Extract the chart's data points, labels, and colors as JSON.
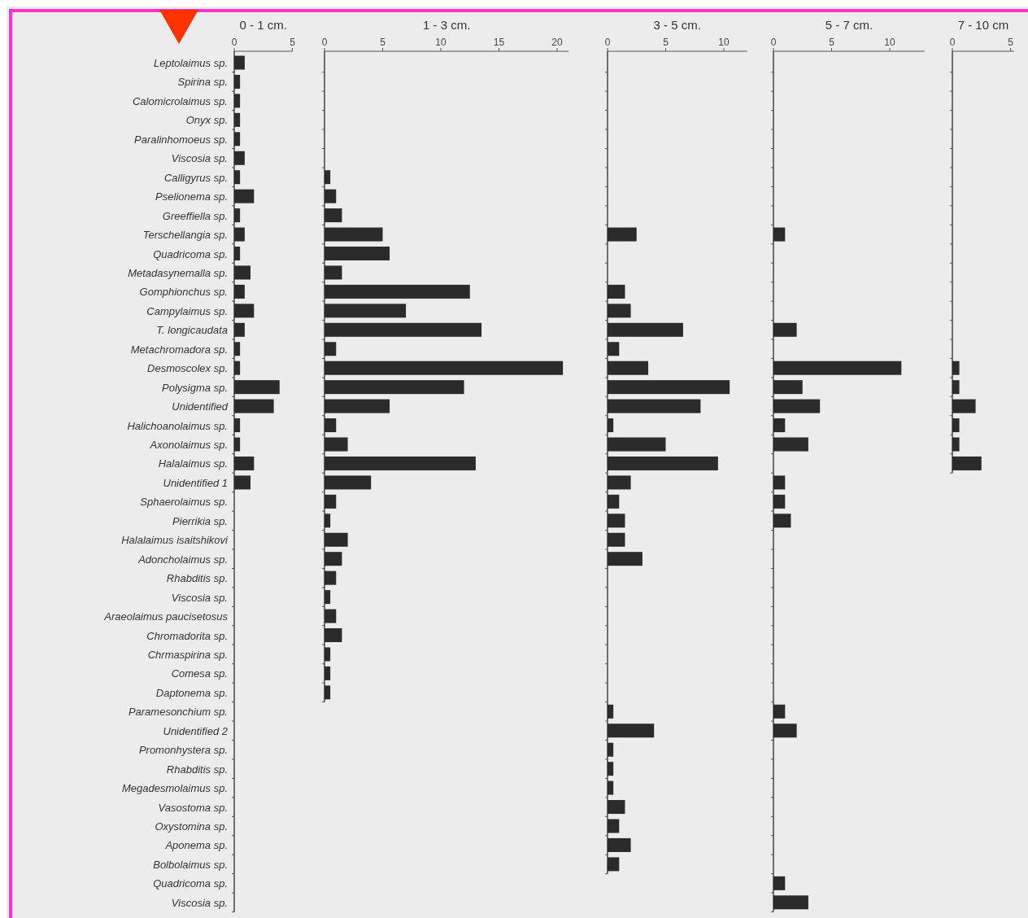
{
  "chart_data": [
    {
      "type": "bar",
      "orientation": "horizontal",
      "title": "0 - 1 cm.",
      "color": "#2b2b2b",
      "xlim": [
        0,
        5
      ],
      "xticks": [
        0,
        5
      ],
      "categories": [
        "Leptolaimus sp.",
        "Spirina sp.",
        "Calomicrolaimus sp.",
        "Onyx sp.",
        "Paralinhomoeus sp.",
        "Viscosia sp.",
        "Calligyrus sp.",
        "Pselionema sp.",
        "Greeffiella sp.",
        "Terschellangia sp.",
        "Quadricoma sp.",
        "Metadasynemalla sp.",
        "Gomphionchus sp.",
        "Campylaimus sp.",
        "T. longicaudata",
        "Metachromadora sp.",
        "Desmoscolex sp.",
        "Polysigma sp.",
        "Unidentified",
        "Halichoanolaimus sp.",
        "Axonolaimus sp.",
        "Halalaimus sp.",
        "Unidentified 1",
        "Sphaerolaimus sp.",
        "Pierrikia sp.",
        "Halalaimus isaitshikovi",
        "Adoncholaimus sp.",
        "Rhabditis sp.",
        "Viscosia sp.",
        "Araeolaimus  paucisetosus",
        "Chromadorita sp.",
        "Chrmaspirina sp.",
        "Comesa sp.",
        "Daptonema sp.",
        "Paramesonchium sp.",
        "Unidentified 2",
        "Promonhystera sp.",
        "Rhabditis sp.",
        "Megadesmolaimus sp.",
        "Vasostoma sp.",
        "Oxystomina sp.",
        "Aponema sp.",
        "Bolbolaimus sp.",
        "Quadricoma sp.",
        "Viscosia sp."
      ],
      "values": [
        0.9,
        0.5,
        0.5,
        0.5,
        0.5,
        0.9,
        0.5,
        1.7,
        0.5,
        0.9,
        0.5,
        1.4,
        0.9,
        1.7,
        0.9,
        0.5,
        0.5,
        3.9,
        3.4,
        0.5,
        0.5,
        1.7,
        1.4,
        null,
        null,
        null,
        null,
        null,
        null,
        null,
        null,
        null,
        null,
        null,
        null,
        null,
        null,
        null,
        null,
        null,
        null,
        null,
        null,
        null,
        null
      ]
    },
    {
      "type": "bar",
      "orientation": "horizontal",
      "title": "1 - 3 cm.",
      "color": "#2b2b2b",
      "xlim": [
        0,
        21
      ],
      "xticks": [
        0,
        5,
        10,
        15,
        20
      ],
      "tick_labels": "x",
      "categories": [
        null,
        null,
        null,
        null,
        null,
        null,
        null,
        null,
        null,
        null,
        null,
        null,
        null,
        null,
        null,
        null,
        null,
        null,
        null,
        null,
        null,
        null,
        null,
        null,
        null,
        null,
        null,
        null,
        null,
        null,
        null,
        null,
        null,
        null
      ],
      "values": [
        null,
        null,
        null,
        null,
        null,
        null,
        0.5,
        1,
        1.5,
        5,
        5.6,
        1.5,
        12.5,
        7,
        13.5,
        1,
        20.5,
        12,
        5.6,
        1,
        2,
        13,
        4,
        1,
        0.5,
        2,
        1.5,
        1,
        0.5,
        1,
        1.5,
        0.5,
        0.5,
        0.5
      ]
    },
    {
      "type": "bar",
      "orientation": "horizontal",
      "title": "3 - 5 cm.",
      "color": "#2b2b2b",
      "xlim": [
        0,
        12
      ],
      "xticks": [
        0,
        5,
        10
      ],
      "tick_labels": "x",
      "categories": [
        null,
        null,
        null,
        null,
        null,
        null,
        null,
        null,
        null,
        null,
        null,
        null,
        null,
        null,
        null,
        null,
        null,
        null,
        null,
        null,
        null,
        null,
        null,
        null,
        null,
        null,
        null,
        null,
        null,
        null,
        null,
        null,
        null,
        null,
        null,
        null,
        null,
        null,
        null,
        null,
        null,
        null,
        null
      ],
      "values": [
        null,
        null,
        null,
        null,
        null,
        null,
        null,
        null,
        null,
        2.5,
        null,
        null,
        1.5,
        2,
        6.5,
        1,
        3.5,
        10.5,
        8,
        0.5,
        5,
        9.5,
        2,
        1,
        1.5,
        1.5,
        3,
        null,
        null,
        null,
        null,
        null,
        null,
        null,
        0.5,
        4,
        0.5,
        0.5,
        0.5,
        1.5,
        1,
        2,
        1
      ]
    },
    {
      "type": "bar",
      "orientation": "horizontal",
      "title": "5 - 7 cm.",
      "color": "#2b2b2b",
      "xlim": [
        0,
        13
      ],
      "xticks": [
        0,
        5,
        10
      ],
      "tick_labels": "x",
      "categories": [
        null,
        null,
        null,
        null,
        null,
        null,
        null,
        null,
        null,
        null,
        null,
        null,
        null,
        null,
        null,
        null,
        null,
        null,
        null,
        null,
        null,
        null,
        null,
        null,
        null,
        null,
        null,
        null,
        null,
        null,
        null,
        null,
        null,
        null,
        null,
        null,
        null,
        null,
        null,
        null,
        null,
        null,
        null,
        null,
        null
      ],
      "values": [
        null,
        null,
        null,
        null,
        null,
        null,
        null,
        null,
        null,
        1,
        null,
        null,
        null,
        null,
        2,
        null,
        11,
        2.5,
        4,
        1,
        3,
        null,
        1,
        1,
        1.5,
        null,
        null,
        null,
        null,
        null,
        null,
        null,
        null,
        null,
        1,
        2,
        null,
        null,
        null,
        null,
        null,
        null,
        null,
        1,
        3
      ]
    },
    {
      "type": "bar",
      "orientation": "horizontal",
      "title": "7 - 10 cm",
      "color": "#2b2b2b",
      "xlim": [
        0,
        5.3
      ],
      "xticks": [
        0,
        5
      ],
      "tick_labels": "x",
      "categories": [
        null,
        null,
        null,
        null,
        null,
        null,
        null,
        null,
        null,
        null,
        null,
        null,
        null,
        null,
        null,
        null,
        null,
        null,
        null,
        null,
        null,
        null
      ],
      "values": [
        null,
        null,
        null,
        null,
        null,
        null,
        null,
        null,
        null,
        null,
        null,
        null,
        null,
        null,
        null,
        null,
        0.6,
        0.6,
        2,
        0.6,
        0.6,
        2.5
      ]
    }
  ]
}
